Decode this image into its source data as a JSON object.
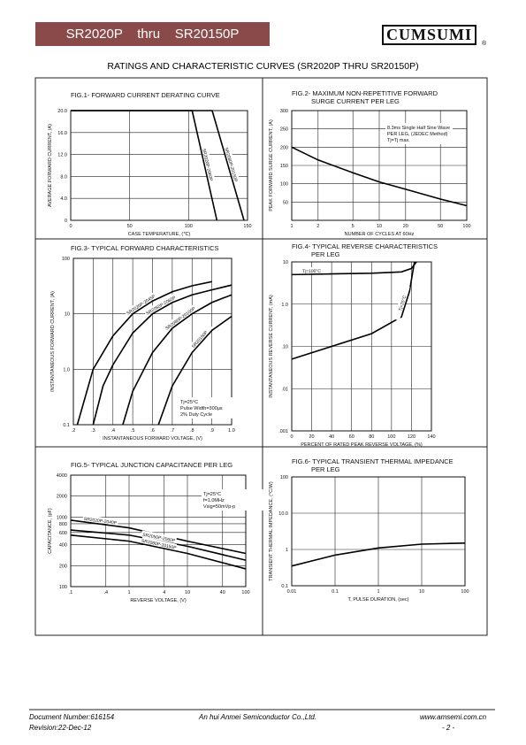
{
  "header": {
    "title": "SR2020P    thru    SR20150P",
    "logo": "CUMSUMI",
    "logo_mark": "®"
  },
  "page_title": "RATINGS AND CHARACTERISTIC CURVES (SR2020P THRU SR20150P)",
  "figures": [
    {
      "type": "line",
      "title": [
        "FIG.1- FORWARD CURRENT DERATING CURVE"
      ],
      "xlabel": "CASE TEMPERATURE, (℃)",
      "ylabel": "AVERAGE FORWARD CURRENT, (A)",
      "xlim": [
        0,
        150
      ],
      "xticks": [
        0,
        50,
        100,
        150
      ],
      "ylim": [
        0,
        20
      ],
      "yticks": [
        0,
        {
          "value": 4,
          "label": "4.0"
        },
        {
          "value": 8,
          "label": "8.0"
        },
        {
          "value": 12,
          "label": "12.0"
        },
        {
          "value": 16,
          "label": "16.0"
        },
        {
          "value": 20,
          "label": "20.0"
        }
      ],
      "xlog": false,
      "ylog": false,
      "series": [
        {
          "name": "SR2020P-2060P",
          "color": "#000",
          "x": [
            0,
            103,
            124
          ],
          "values": [
            20,
            20,
            0
          ]
        },
        {
          "name": "SR2080P-20150P",
          "color": "#000",
          "x": [
            0,
            120,
            147
          ],
          "values": [
            20,
            20,
            0
          ]
        }
      ],
      "annotation": []
    },
    {
      "type": "line",
      "title": [
        "FIG.2- MAXIMUM NON-REPETITIVE FORWARD",
        "SURGE CURRENT PER LEG"
      ],
      "xlabel": "NUMBER OF CYCLES AT 60Hz",
      "ylabel": "PEAK FORWARD SURGE CURRENT, (A)",
      "xlim": [
        1,
        100
      ],
      "xticks": [
        1,
        2,
        5,
        10,
        20,
        50,
        100
      ],
      "ylim": [
        0,
        300
      ],
      "yticks": [
        50,
        100,
        150,
        200,
        250,
        300
      ],
      "xlog": true,
      "ylog": false,
      "series": [
        {
          "name": null,
          "color": "#000",
          "x": [
            1,
            2,
            5,
            10,
            20,
            50,
            100
          ],
          "values": [
            200,
            165,
            130,
            105,
            85,
            58,
            40
          ]
        }
      ],
      "annotation": [
        "8.3ms Single Half Sine Wave",
        "PER LEG, (JEDEC Method)",
        "Tj=Tj max."
      ]
    },
    {
      "type": "line",
      "title": [
        "FIG.3- TYPICAL FORWARD CHARACTERISTICS"
      ],
      "xlabel": "INSTANTANEOUS FORWARD VOLTAGE, (V)",
      "ylabel": "INSTANTANEOUS FORWARD CURRENT, (A)",
      "xlim": [
        0.2,
        1
      ],
      "xticks": [
        {
          "value": 0.2,
          "label": ".2"
        },
        {
          "value": 0.3,
          "label": ".3"
        },
        {
          "value": 0.4,
          "label": ".4"
        },
        {
          "value": 0.5,
          "label": ".5"
        },
        {
          "value": 0.6,
          "label": ".6"
        },
        {
          "value": 0.7,
          "label": ".7"
        },
        {
          "value": 0.8,
          "label": ".8"
        },
        {
          "value": 0.9,
          "label": ".9"
        },
        {
          "value": 1,
          "label": "1.0"
        }
      ],
      "ylim": [
        0.1,
        100
      ],
      "yticks": [
        0.1,
        {
          "value": 1,
          "label": "1.0"
        },
        10,
        100
      ],
      "xlog": false,
      "ylog": true,
      "series": [
        {
          "name": "SR2020P-2045P",
          "color": "#000",
          "x": [
            0.22,
            0.3,
            0.4,
            0.5,
            0.6,
            0.7,
            0.8,
            0.9
          ],
          "values": [
            0.1,
            1,
            4,
            10,
            17,
            25,
            32,
            38
          ]
        },
        {
          "name": "SR2050P-2060P",
          "color": "#000",
          "x": [
            0.3,
            0.35,
            0.4,
            0.5,
            0.6,
            0.7,
            0.8,
            0.9,
            1
          ],
          "values": [
            0.1,
            0.5,
            1.2,
            4.5,
            10,
            16,
            22,
            27,
            33
          ]
        },
        {
          "name": "SR2080P-20100P",
          "color": "#000",
          "x": [
            0.45,
            0.5,
            0.6,
            0.7,
            0.8,
            0.9,
            1
          ],
          "values": [
            0.1,
            0.4,
            2,
            5.5,
            10,
            16,
            22
          ]
        },
        {
          "name": "SR20150P",
          "color": "#000",
          "x": [
            0.63,
            0.7,
            0.8,
            0.9,
            1
          ],
          "values": [
            0.1,
            0.5,
            2,
            5,
            9
          ]
        }
      ],
      "annotation": [
        "Tj=25°C",
        "Pulse Width=300μs",
        "2% Duty Cycle"
      ]
    },
    {
      "type": "line",
      "title": [
        "FIG.4- TYPICAL REVERSE CHARACTERISTICS",
        "PER LEG"
      ],
      "xlabel": "PERCENT OF RATED PEAK REVERSE VOLTAGE, (%)",
      "ylabel": "INSTANTANEOUS REVERSE CURRENT, (mA)",
      "xlim": [
        0,
        140
      ],
      "xticks": [
        0,
        20,
        40,
        60,
        80,
        100,
        120,
        140
      ],
      "ylim": [
        0.001,
        10
      ],
      "yticks": [
        {
          "value": 0.001,
          "label": ".001"
        },
        {
          "value": 0.01,
          "label": ".01"
        },
        {
          "value": 0.1,
          "label": ".10"
        },
        {
          "value": 1,
          "label": "1.0"
        },
        10
      ],
      "xlog": false,
      "ylog": true,
      "series": [
        {
          "name": "Tj=100°C",
          "color": "#000",
          "x": [
            0,
            40,
            80,
            110,
            120,
            125
          ],
          "values": [
            5,
            5.2,
            5.4,
            5.8,
            7,
            10
          ]
        },
        {
          "name": "Tj=25°C",
          "color": "#000",
          "x": [
            0,
            40,
            80,
            110,
            118,
            123
          ],
          "values": [
            0.05,
            0.1,
            0.2,
            0.5,
            2,
            10
          ]
        }
      ],
      "annotation": []
    },
    {
      "type": "line",
      "title": [
        "FIG.5- TYPICAL JUNCTION CAPACITANCE PER LEG"
      ],
      "xlabel": "REVERSE VOLTAGE, (V)",
      "ylabel": "CAPACITANCE, (pF)",
      "xlim": [
        0.1,
        100
      ],
      "xticks": [
        {
          "value": 0.1,
          "label": ".1"
        },
        {
          "value": 0.4,
          "label": ".4"
        },
        1,
        4,
        10,
        40,
        100
      ],
      "ylim": [
        100,
        4000
      ],
      "yticks": [
        100,
        200,
        400,
        600,
        800,
        1000,
        2000,
        4000
      ],
      "xlog": true,
      "ylog": true,
      "series": [
        {
          "name": "SR2020P-2040P",
          "color": "#000",
          "x": [
            0.1,
            1,
            10,
            100
          ],
          "values": [
            900,
            700,
            450,
            300
          ]
        },
        {
          "name": "SR2050P-2060P",
          "color": "#000",
          "x": [
            0.1,
            1,
            10,
            100
          ],
          "values": [
            650,
            550,
            380,
            240
          ]
        },
        {
          "name": "SR2080P-20150P",
          "color": "#000",
          "x": [
            0.1,
            1,
            10,
            100
          ],
          "values": [
            550,
            450,
            300,
            180
          ]
        }
      ],
      "annotation": [
        "Tj=25°C",
        "f=1.0MHz",
        "Vsig=50mVp-p"
      ]
    },
    {
      "type": "line",
      "title": [
        "FIG.6- TYPICAL TRANSIENT THERMAL IMPEDANCE",
        "PER LEG"
      ],
      "xlabel": "T, PULSE DURATION, (sec)",
      "ylabel": "TRANSIENT THERMAL IMPEDANCE, (°C/W)",
      "xlim": [
        0.01,
        100
      ],
      "xticks": [
        0.01,
        0.1,
        1,
        10,
        100
      ],
      "ylim": [
        0.1,
        100
      ],
      "yticks": [
        0.1,
        1,
        {
          "value": 10,
          "label": "10.0"
        },
        100
      ],
      "xlog": true,
      "ylog": true,
      "series": [
        {
          "name": null,
          "color": "#000",
          "x": [
            0.01,
            0.1,
            1,
            10,
            100
          ],
          "values": [
            0.35,
            0.7,
            1.1,
            1.4,
            1.5
          ]
        }
      ],
      "annotation": []
    }
  ],
  "footer": {
    "doc_number": "Document Number:616154",
    "revision": "Revision:22-Dec-12",
    "company": "An hui Anmei Semiconductor Co.,Ltd.",
    "website": "www.amsemi.com.cn",
    "page": "- 2 -"
  }
}
